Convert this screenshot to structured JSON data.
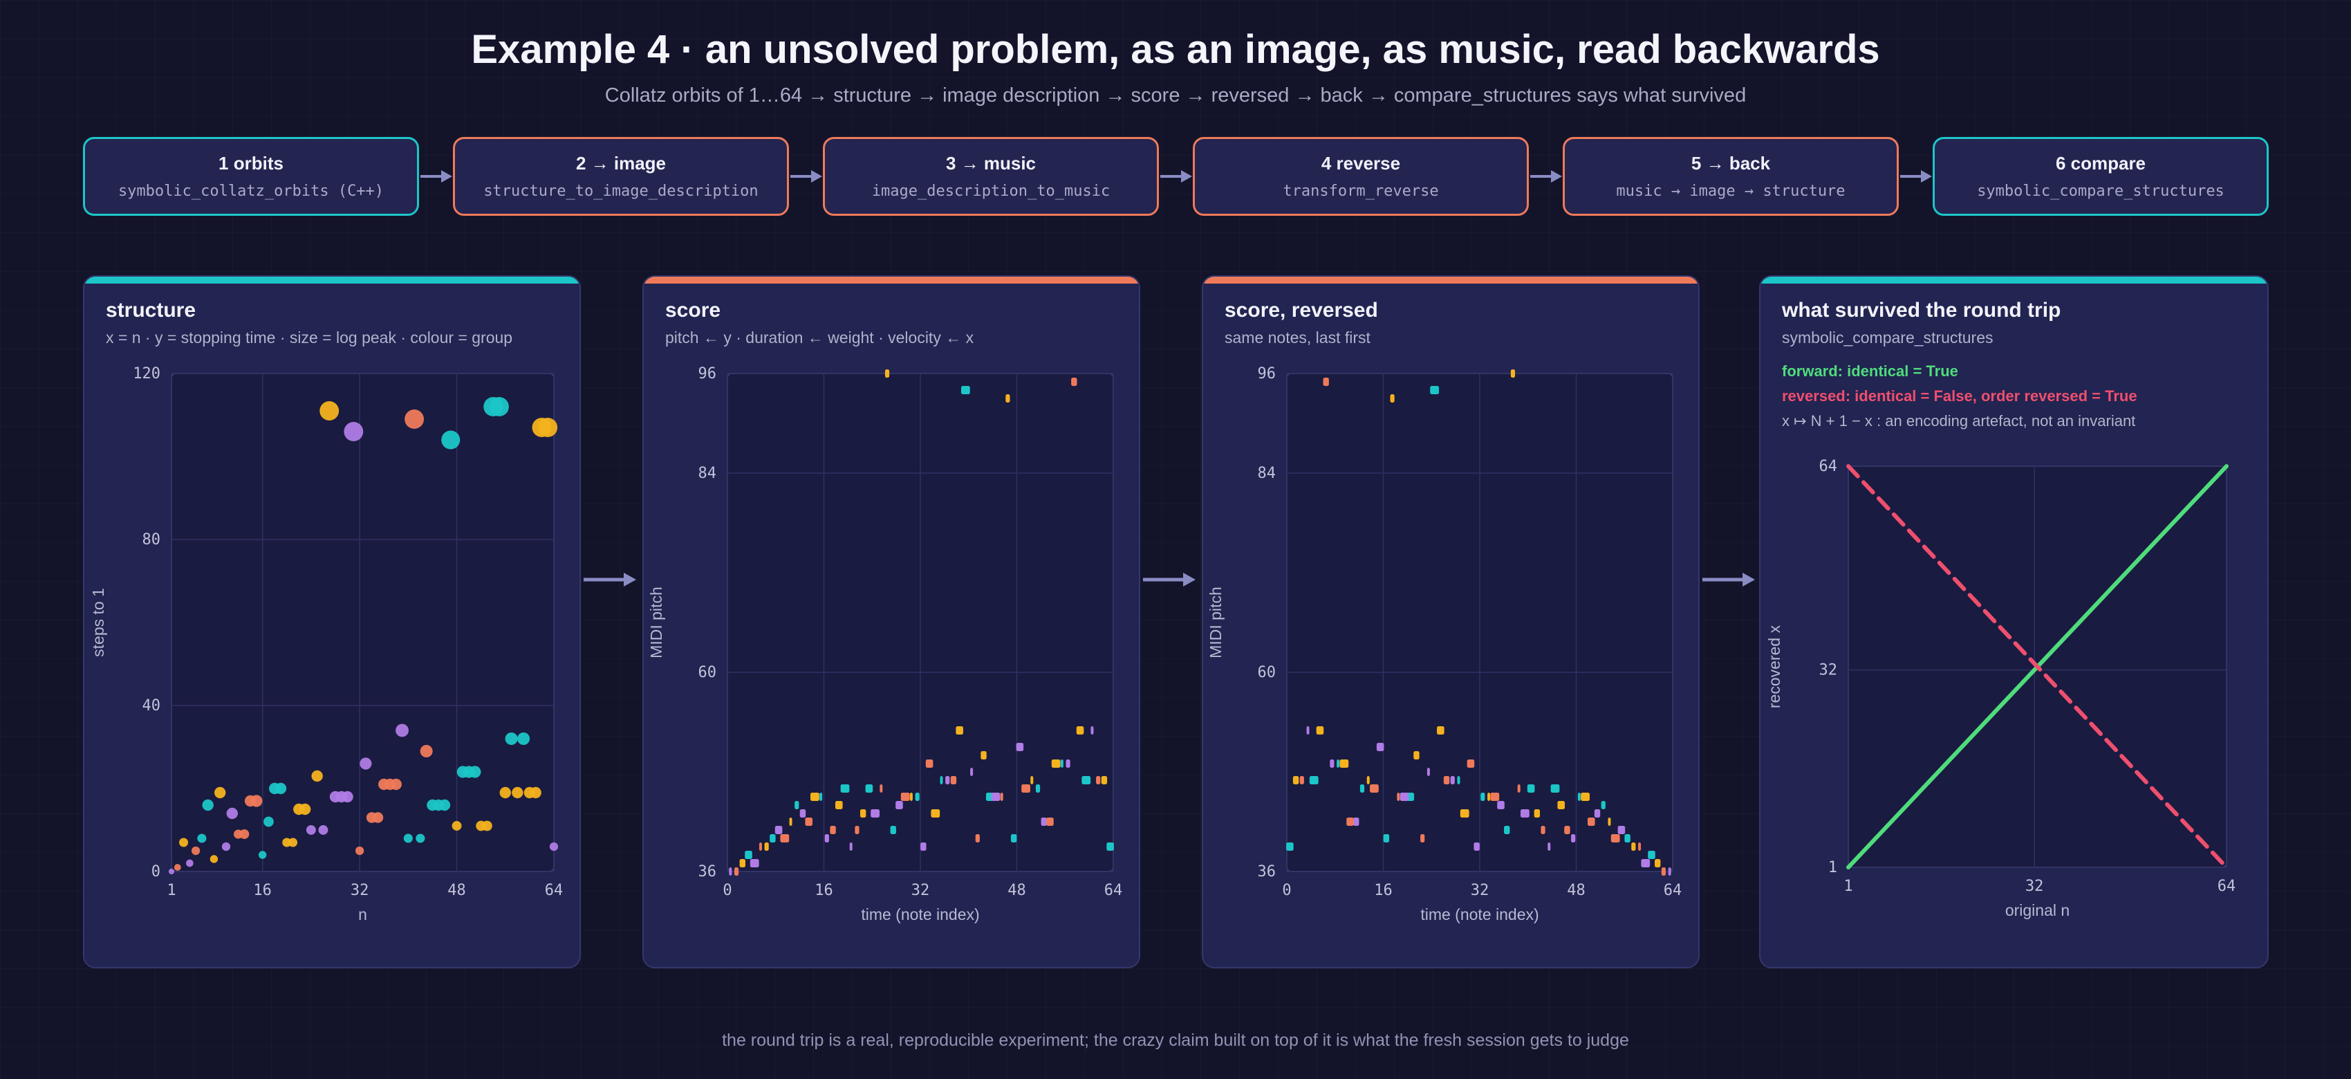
{
  "header": {
    "title": "Example 4 · an unsolved problem, as an image, as music, read backwards",
    "subtitle": "Collatz orbits of 1…64 → structure → image description → score → reversed → back → compare_structures says what survived"
  },
  "colors": {
    "teal": "#1cc6c8",
    "orange": "#ef7a5a",
    "yellow": "#f4b21e",
    "purple": "#b07ce6",
    "green": "#4fdc7c",
    "pink": "#ef4f6e",
    "arrow": "#8a8cc4"
  },
  "pipeline": [
    {
      "title": "1 orbits",
      "subtitle": "symbolic_collatz_orbits (C++)",
      "accent": "teal"
    },
    {
      "title": "2 → image",
      "subtitle": "structure_to_image_description",
      "accent": "orange"
    },
    {
      "title": "3 → music",
      "subtitle": "image_description_to_music",
      "accent": "orange"
    },
    {
      "title": "4 reverse",
      "subtitle": "transform_reverse",
      "accent": "orange"
    },
    {
      "title": "5 → back",
      "subtitle": "music → image → structure",
      "accent": "orange"
    },
    {
      "title": "6 compare",
      "subtitle": "symbolic_compare_structures",
      "accent": "teal"
    }
  ],
  "panels": {
    "structure": {
      "title": "structure",
      "subtitle": "x = n · y = stopping time · size = log peak · colour = group",
      "accent": "teal"
    },
    "score": {
      "title": "score",
      "subtitle": "pitch ← y · duration ← weight · velocity ← x",
      "accent": "orange"
    },
    "reversed": {
      "title": "score, reversed",
      "subtitle": "same notes, last first",
      "accent": "orange"
    },
    "survived": {
      "title": "what survived the round trip",
      "subtitle": "symbolic_compare_structures",
      "accent": "teal",
      "forward_note": "forward: identical = True",
      "reversed_note": "reversed: identical = False, order reversed = True",
      "artefact_note": "x ↦ N + 1 − x : an encoding artefact, not an invariant"
    }
  },
  "chart_data": [
    {
      "id": "structure",
      "type": "scatter",
      "xlabel": "n",
      "ylabel": "steps to 1",
      "xlim": [
        1,
        64
      ],
      "ylim": [
        0,
        120
      ],
      "xticks": [
        1,
        16,
        32,
        48,
        64
      ],
      "yticks": [
        0,
        40,
        80,
        120
      ],
      "grid": true,
      "size_encoding": "log peak",
      "points": [
        {
          "x": 1,
          "y": 0,
          "g": "purple",
          "s": 1.0
        },
        {
          "x": 2,
          "y": 1,
          "g": "orange",
          "s": 1.2
        },
        {
          "x": 3,
          "y": 7,
          "g": "yellow",
          "s": 1.6
        },
        {
          "x": 4,
          "y": 2,
          "g": "purple",
          "s": 1.3
        },
        {
          "x": 5,
          "y": 5,
          "g": "orange",
          "s": 1.5
        },
        {
          "x": 6,
          "y": 8,
          "g": "teal",
          "s": 1.6
        },
        {
          "x": 7,
          "y": 16,
          "g": "teal",
          "s": 2.0
        },
        {
          "x": 8,
          "y": 3,
          "g": "yellow",
          "s": 1.4
        },
        {
          "x": 9,
          "y": 19,
          "g": "yellow",
          "s": 2.0
        },
        {
          "x": 10,
          "y": 6,
          "g": "purple",
          "s": 1.5
        },
        {
          "x": 11,
          "y": 14,
          "g": "purple",
          "s": 2.0
        },
        {
          "x": 12,
          "y": 9,
          "g": "orange",
          "s": 1.6
        },
        {
          "x": 13,
          "y": 9,
          "g": "orange",
          "s": 1.7
        },
        {
          "x": 14,
          "y": 17,
          "g": "orange",
          "s": 2.0
        },
        {
          "x": 15,
          "y": 17,
          "g": "orange",
          "s": 2.1
        },
        {
          "x": 16,
          "y": 4,
          "g": "teal",
          "s": 1.4
        },
        {
          "x": 17,
          "y": 12,
          "g": "teal",
          "s": 1.8
        },
        {
          "x": 18,
          "y": 20,
          "g": "teal",
          "s": 2.0
        },
        {
          "x": 19,
          "y": 20,
          "g": "teal",
          "s": 2.0
        },
        {
          "x": 20,
          "y": 7,
          "g": "yellow",
          "s": 1.6
        },
        {
          "x": 21,
          "y": 7,
          "g": "yellow",
          "s": 1.6
        },
        {
          "x": 22,
          "y": 15,
          "g": "yellow",
          "s": 2.0
        },
        {
          "x": 23,
          "y": 15,
          "g": "yellow",
          "s": 2.0
        },
        {
          "x": 24,
          "y": 10,
          "g": "purple",
          "s": 1.7
        },
        {
          "x": 25,
          "y": 23,
          "g": "yellow",
          "s": 2.0
        },
        {
          "x": 26,
          "y": 10,
          "g": "purple",
          "s": 1.7
        },
        {
          "x": 27,
          "y": 111,
          "g": "yellow",
          "s": 3.4
        },
        {
          "x": 28,
          "y": 18,
          "g": "purple",
          "s": 2.0
        },
        {
          "x": 29,
          "y": 18,
          "g": "purple",
          "s": 2.0
        },
        {
          "x": 30,
          "y": 18,
          "g": "purple",
          "s": 2.0
        },
        {
          "x": 31,
          "y": 106,
          "g": "purple",
          "s": 3.4
        },
        {
          "x": 32,
          "y": 5,
          "g": "orange",
          "s": 1.5
        },
        {
          "x": 33,
          "y": 26,
          "g": "purple",
          "s": 2.1
        },
        {
          "x": 34,
          "y": 13,
          "g": "orange",
          "s": 1.9
        },
        {
          "x": 35,
          "y": 13,
          "g": "orange",
          "s": 1.9
        },
        {
          "x": 36,
          "y": 21,
          "g": "orange",
          "s": 2.0
        },
        {
          "x": 37,
          "y": 21,
          "g": "orange",
          "s": 2.0
        },
        {
          "x": 38,
          "y": 21,
          "g": "orange",
          "s": 2.0
        },
        {
          "x": 39,
          "y": 34,
          "g": "purple",
          "s": 2.3
        },
        {
          "x": 40,
          "y": 8,
          "g": "teal",
          "s": 1.6
        },
        {
          "x": 41,
          "y": 109,
          "g": "orange",
          "s": 3.4
        },
        {
          "x": 42,
          "y": 8,
          "g": "teal",
          "s": 1.6
        },
        {
          "x": 43,
          "y": 29,
          "g": "orange",
          "s": 2.2
        },
        {
          "x": 44,
          "y": 16,
          "g": "teal",
          "s": 2.0
        },
        {
          "x": 45,
          "y": 16,
          "g": "teal",
          "s": 2.0
        },
        {
          "x": 46,
          "y": 16,
          "g": "teal",
          "s": 2.0
        },
        {
          "x": 47,
          "y": 104,
          "g": "teal",
          "s": 3.3
        },
        {
          "x": 48,
          "y": 11,
          "g": "yellow",
          "s": 1.7
        },
        {
          "x": 49,
          "y": 24,
          "g": "teal",
          "s": 2.1
        },
        {
          "x": 50,
          "y": 24,
          "g": "teal",
          "s": 2.1
        },
        {
          "x": 51,
          "y": 24,
          "g": "teal",
          "s": 2.1
        },
        {
          "x": 52,
          "y": 11,
          "g": "yellow",
          "s": 1.8
        },
        {
          "x": 53,
          "y": 11,
          "g": "yellow",
          "s": 1.8
        },
        {
          "x": 54,
          "y": 112,
          "g": "teal",
          "s": 3.4
        },
        {
          "x": 55,
          "y": 112,
          "g": "teal",
          "s": 3.4
        },
        {
          "x": 56,
          "y": 19,
          "g": "yellow",
          "s": 2.0
        },
        {
          "x": 57,
          "y": 32,
          "g": "teal",
          "s": 2.2
        },
        {
          "x": 58,
          "y": 19,
          "g": "yellow",
          "s": 2.0
        },
        {
          "x": 59,
          "y": 32,
          "g": "teal",
          "s": 2.2
        },
        {
          "x": 60,
          "y": 19,
          "g": "yellow",
          "s": 2.0
        },
        {
          "x": 61,
          "y": 19,
          "g": "yellow",
          "s": 2.0
        },
        {
          "x": 62,
          "y": 107,
          "g": "yellow",
          "s": 3.4
        },
        {
          "x": 63,
          "y": 107,
          "g": "yellow",
          "s": 3.4
        },
        {
          "x": 64,
          "y": 6,
          "g": "purple",
          "s": 1.5
        }
      ]
    },
    {
      "id": "score",
      "type": "scatter",
      "xlabel": "time (note index)",
      "ylabel": "MIDI pitch",
      "xlim": [
        0,
        64
      ],
      "ylim": [
        36,
        96
      ],
      "xticks": [
        0,
        16,
        32,
        48,
        64
      ],
      "yticks": [
        36,
        60,
        84,
        96
      ],
      "grid": true,
      "pitches": [
        36,
        36,
        37,
        38,
        37,
        39,
        39,
        40,
        41,
        40,
        42,
        44,
        43,
        42,
        45,
        45,
        40,
        41,
        44,
        46,
        39,
        41,
        43,
        46,
        43,
        46,
        96,
        41,
        44,
        45,
        45,
        45,
        39,
        49,
        43,
        47,
        47,
        47,
        53,
        94,
        48,
        40,
        50,
        45,
        45,
        45,
        93,
        40,
        51,
        46,
        47,
        46,
        42,
        42,
        49,
        49,
        49,
        95,
        53,
        47,
        53,
        47,
        47,
        39
      ]
    },
    {
      "id": "reversed",
      "type": "scatter",
      "xlabel": "time (note index)",
      "ylabel": "MIDI pitch",
      "xlim": [
        0,
        64
      ],
      "ylim": [
        36,
        96
      ],
      "xticks": [
        0,
        16,
        32,
        48,
        64
      ],
      "yticks": [
        36,
        60,
        84,
        96
      ],
      "grid": true,
      "note": "same notes, last first"
    },
    {
      "id": "survived",
      "type": "line",
      "xlabel": "original n",
      "ylabel": "recovered x",
      "xlim": [
        1,
        64
      ],
      "ylim": [
        1,
        64
      ],
      "xticks": [
        1,
        32,
        64
      ],
      "yticks": [
        1,
        32,
        64
      ],
      "grid": true,
      "series": [
        {
          "name": "forward",
          "x": [
            1,
            64
          ],
          "y": [
            1,
            64
          ],
          "color": "green",
          "style": "solid"
        },
        {
          "name": "reversed",
          "x": [
            1,
            64
          ],
          "y": [
            64,
            1
          ],
          "color": "pink",
          "style": "dashed"
        }
      ]
    }
  ],
  "footer": "the round trip is a real, reproducible experiment; the crazy claim built on top of it is what the fresh session gets to judge"
}
